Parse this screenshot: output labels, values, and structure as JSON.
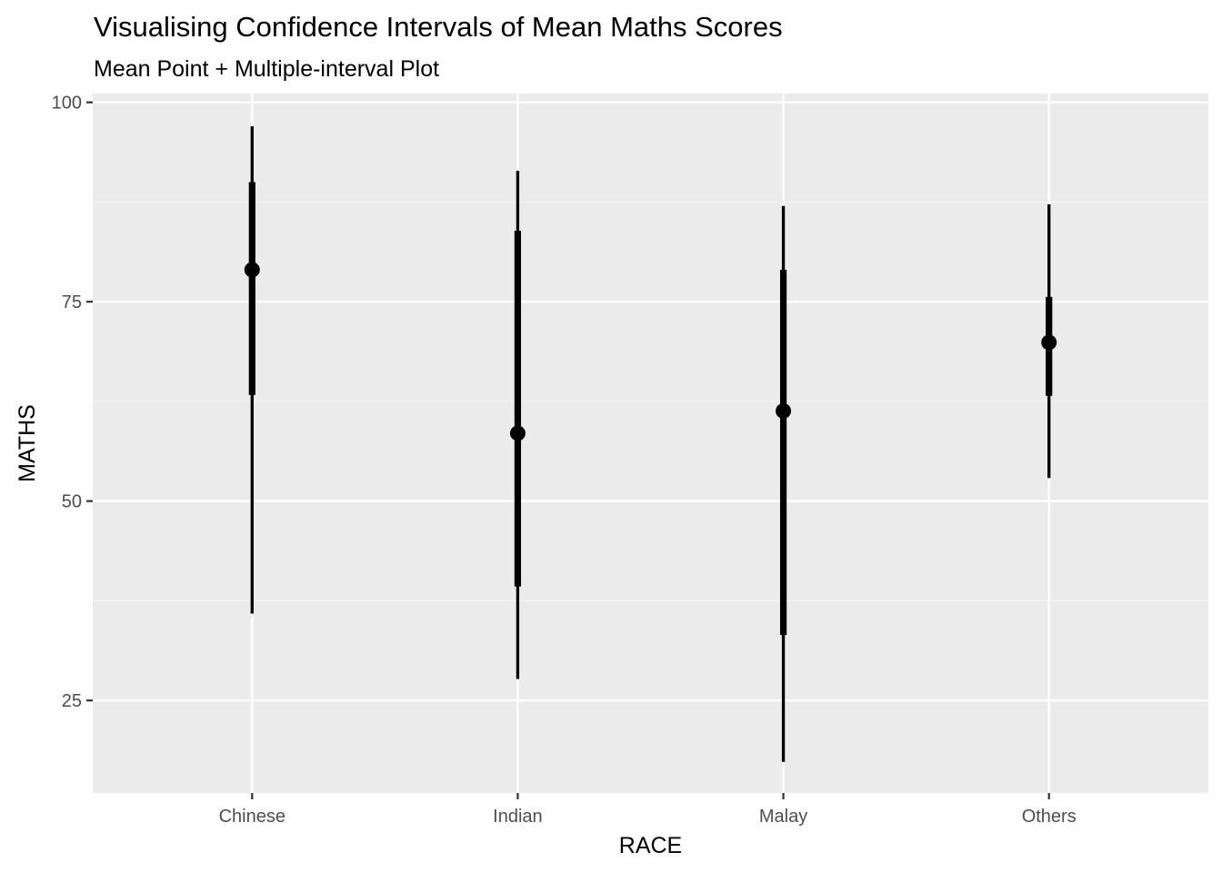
{
  "chart_data": {
    "type": "interval",
    "title": "Visualising Confidence Intervals of Mean Maths Scores",
    "subtitle": "Mean Point + Multiple-interval Plot",
    "xlabel": "RACE",
    "ylabel": "MATHS",
    "categories": [
      "Chinese",
      "Indian",
      "Malay",
      "Others"
    ],
    "ylim": [
      13.4,
      101.1
    ],
    "yticks": [
      25,
      50,
      75,
      100
    ],
    "ytick_labels": [
      "25",
      "50",
      "75",
      "100"
    ],
    "grid": true,
    "legend": "none",
    "series": [
      {
        "name": "mean",
        "values": [
          79.0,
          58.5,
          61.3,
          69.9
        ]
      },
      {
        "name": "inner_interval_low",
        "values": [
          63.3,
          39.3,
          33.2,
          63.2
        ]
      },
      {
        "name": "inner_interval_high",
        "values": [
          90.0,
          83.9,
          79.0,
          75.6
        ]
      },
      {
        "name": "outer_interval_low",
        "values": [
          35.9,
          27.7,
          17.3,
          52.9
        ]
      },
      {
        "name": "outer_interval_high",
        "values": [
          97.0,
          91.4,
          87.0,
          87.2
        ]
      }
    ],
    "colors": {
      "panel_background": "#ebebeb",
      "grid_major": "#ffffff",
      "grid_minor": "#f5f5f5",
      "marks": "#000000",
      "tick": "#333333"
    }
  }
}
